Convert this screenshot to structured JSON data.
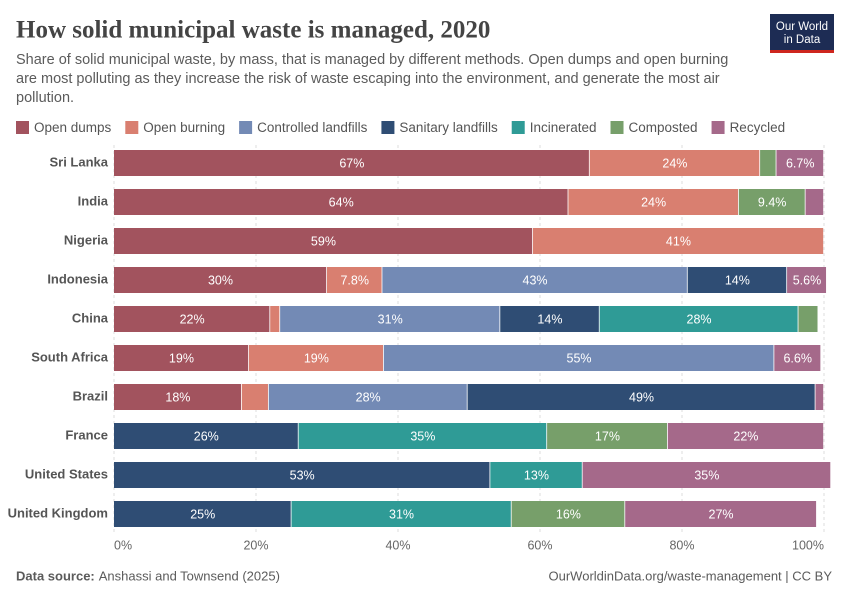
{
  "chart_data": {
    "type": "stacked-barh",
    "title": "How solid municipal waste is managed, 2020",
    "subtitle": "Share of solid municipal waste, by mass, that is managed by different methods. Open dumps and open burning are most polluting as they increase the risk of waste escaping into the environment, and generate the most air pollution.",
    "logo": [
      "Our World",
      "in Data"
    ],
    "source_label": "Data source:",
    "source": "Anshassi and Townsend (2025)",
    "url": "OurWorldinData.org/waste-management | CC BY",
    "categories": [
      "Sri Lanka",
      "India",
      "Nigeria",
      "Indonesia",
      "China",
      "South Africa",
      "Brazil",
      "France",
      "United States",
      "United Kingdom"
    ],
    "series": [
      {
        "name": "Open dumps",
        "color": "#a2535e",
        "values": [
          67,
          64,
          59,
          30,
          22,
          19,
          18,
          null,
          null,
          null
        ],
        "value_labels": [
          "67%",
          "64%",
          "59%",
          "30%",
          "22%",
          "19%",
          "18%",
          null,
          null,
          null
        ]
      },
      {
        "name": "Open burning",
        "color": "#d97f70",
        "values": [
          24,
          24,
          41,
          7.8,
          1.4,
          19,
          3.8,
          null,
          null,
          null
        ],
        "value_labels": [
          "24%",
          "24%",
          "41%",
          "7.8%",
          null,
          "19%",
          null,
          null,
          null,
          null
        ]
      },
      {
        "name": "Controlled landfills",
        "color": "#738ab5",
        "values": [
          null,
          null,
          null,
          43,
          31,
          55,
          28,
          null,
          null,
          null
        ],
        "value_labels": [
          null,
          null,
          null,
          "43%",
          "31%",
          "55%",
          "28%",
          null,
          null,
          null
        ]
      },
      {
        "name": "Sanitary landfills",
        "color": "#2f4d74",
        "values": [
          null,
          null,
          null,
          14,
          14,
          null,
          49,
          26,
          53,
          25
        ],
        "value_labels": [
          null,
          null,
          null,
          "14%",
          "14%",
          null,
          "49%",
          "26%",
          "53%",
          "25%"
        ]
      },
      {
        "name": "Incinerated",
        "color": "#2f9b96",
        "values": [
          null,
          null,
          null,
          null,
          28,
          null,
          null,
          35,
          13,
          31
        ],
        "value_labels": [
          null,
          null,
          null,
          null,
          "28%",
          null,
          null,
          "35%",
          "13%",
          "31%"
        ]
      },
      {
        "name": "Composted",
        "color": "#779f6a",
        "values": [
          2.3,
          9.4,
          null,
          null,
          2.8,
          null,
          null,
          17,
          null,
          16
        ],
        "value_labels": [
          null,
          "9.4%",
          null,
          null,
          null,
          null,
          null,
          "17%",
          null,
          "16%"
        ]
      },
      {
        "name": "Recycled",
        "color": "#a5698a",
        "values": [
          6.7,
          2.6,
          null,
          5.6,
          null,
          6.6,
          1.2,
          22,
          35,
          27
        ],
        "value_labels": [
          "6.7%",
          null,
          null,
          "5.6%",
          null,
          "6.6%",
          null,
          "22%",
          "35%",
          "27%"
        ]
      }
    ],
    "xlim": [
      0,
      100
    ],
    "xticks": [
      {
        "value": 0,
        "label": "0%"
      },
      {
        "value": 20,
        "label": "20%"
      },
      {
        "value": 40,
        "label": "40%"
      },
      {
        "value": 60,
        "label": "60%"
      },
      {
        "value": 80,
        "label": "80%"
      },
      {
        "value": 100,
        "label": "100%"
      }
    ],
    "grid": true
  }
}
